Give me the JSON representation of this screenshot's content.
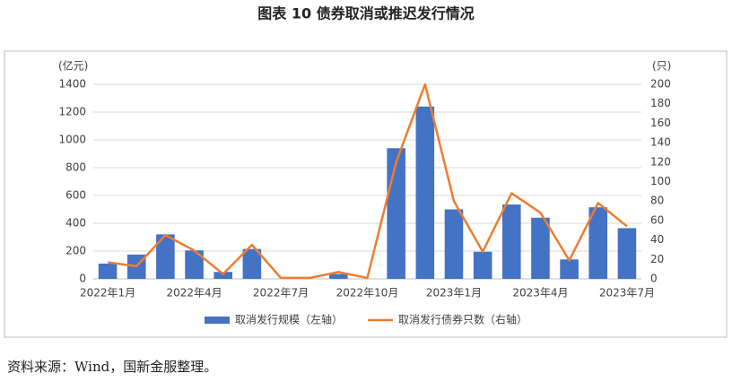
{
  "chart_data": {
    "type": "bar_line",
    "title": "图表 10  债券取消或推迟发行情况",
    "categories": [
      "2022年1月",
      null,
      null,
      "2022年4月",
      null,
      null,
      "2022年7月",
      null,
      null,
      "2022年10月",
      null,
      null,
      "2023年1月",
      null,
      null,
      "2023年4月",
      null,
      null,
      "2023年7月"
    ],
    "series": [
      {
        "name": "取消发行规模（左轴）",
        "color": "#4472c4",
        "kind": "bar",
        "values": [
          110,
          175,
          320,
          205,
          50,
          215,
          0,
          0,
          35,
          0,
          940,
          1240,
          500,
          195,
          535,
          440,
          140,
          515,
          365
        ]
      },
      {
        "name": "取消发行债券只数（右轴）",
        "color": "#ed7d31",
        "kind": "line",
        "axis": "y2",
        "values": [
          17,
          13,
          45,
          29,
          5,
          35,
          1,
          1,
          7,
          1,
          120,
          200,
          80,
          28,
          88,
          68,
          19,
          78,
          54
        ]
      }
    ],
    "ylabel": "(亿元)",
    "y2label": "(只)",
    "ylim": [
      0,
      1400
    ],
    "yticks": [
      0,
      200,
      400,
      600,
      800,
      1000,
      1200,
      1400
    ],
    "y2lim": [
      0,
      200
    ],
    "y2ticks": [
      0,
      20,
      40,
      60,
      80,
      100,
      120,
      140,
      160,
      180,
      200
    ],
    "grid": true,
    "legend": "bottom",
    "source": "资料来源：Wind，国新金服整理。"
  }
}
